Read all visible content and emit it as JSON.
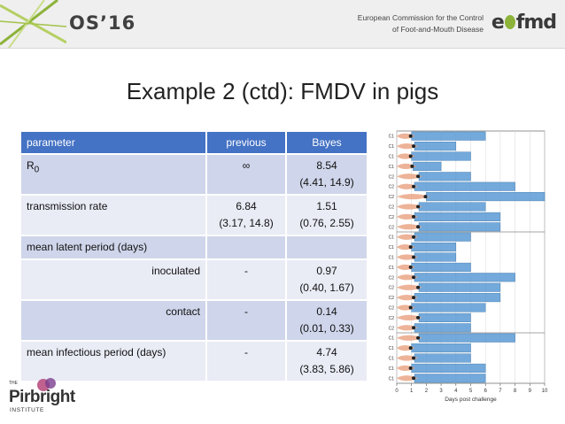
{
  "header": {
    "conference_logo": "OS’16",
    "org_line1": "European Commission for the Control",
    "org_line2": "of Foot-and-Mouth Disease",
    "org_logo": "eufmd"
  },
  "slide": {
    "title": "Example 2 (ctd): FMDV in pigs"
  },
  "table": {
    "headers": [
      "parameter",
      "previous",
      "Bayes"
    ],
    "rows": [
      {
        "parameter": "R",
        "parameter_sub": "0",
        "previous": "∞",
        "bayes": "8.54",
        "bayes_ci": "(4.41, 14.9)",
        "prev_ci": ""
      },
      {
        "parameter": "transmission rate",
        "parameter_sub": "",
        "previous": "6.84",
        "prev_ci": "(3.17, 14.8)",
        "bayes": "1.51",
        "bayes_ci": "(0.76, 2.55)"
      },
      {
        "parameter": "mean latent period (days)",
        "parameter_sub": "",
        "previous": "",
        "prev_ci": "",
        "bayes": "",
        "bayes_ci": ""
      },
      {
        "parameter": "inoculated",
        "parameter_sub": "",
        "previous": "-",
        "prev_ci": "",
        "bayes": "0.97",
        "bayes_ci": "(0.40, 1.67)"
      },
      {
        "parameter": "contact",
        "parameter_sub": "",
        "previous": "-",
        "prev_ci": "",
        "bayes": "0.14",
        "bayes_ci": "(0.01, 0.33)"
      },
      {
        "parameter": "mean infectious period (days)",
        "parameter_sub": "",
        "previous": "-",
        "prev_ci": "",
        "bayes": "4.74",
        "bayes_ci": "(3.83, 5.86)"
      }
    ]
  },
  "chart_data": {
    "type": "bar",
    "orientation": "horizontal",
    "xlabel": "Days post challenge",
    "xlim": [
      0,
      10
    ],
    "xticks": [
      "0",
      "1",
      "2",
      "3",
      "4",
      "5",
      "6",
      "7",
      "8",
      "9",
      "10"
    ],
    "groups": [
      {
        "rows": [
          {
            "label": "C1",
            "latent_end": 1.0,
            "infectious_end": 6.0
          },
          {
            "label": "C1",
            "latent_end": 1.2,
            "infectious_end": 4.0
          },
          {
            "label": "C1",
            "latent_end": 1.0,
            "infectious_end": 5.0
          },
          {
            "label": "C1",
            "latent_end": 1.1,
            "infectious_end": 3.0
          },
          {
            "label": "C2",
            "latent_end": 1.5,
            "infectious_end": 5.0
          },
          {
            "label": "C2",
            "latent_end": 1.2,
            "infectious_end": 8.0
          },
          {
            "label": "C2",
            "latent_end": 2.0,
            "infectious_end": 10.0
          },
          {
            "label": "C2",
            "latent_end": 1.5,
            "infectious_end": 6.0
          },
          {
            "label": "C2",
            "latent_end": 1.2,
            "infectious_end": 7.0
          },
          {
            "label": "C2",
            "latent_end": 1.5,
            "infectious_end": 7.0
          }
        ]
      },
      {
        "rows": [
          {
            "label": "C1",
            "latent_end": 1.2,
            "infectious_end": 5.0
          },
          {
            "label": "C1",
            "latent_end": 1.0,
            "infectious_end": 4.0
          },
          {
            "label": "C1",
            "latent_end": 1.2,
            "infectious_end": 4.0
          },
          {
            "label": "C1",
            "latent_end": 1.0,
            "infectious_end": 5.0
          },
          {
            "label": "C2",
            "latent_end": 1.2,
            "infectious_end": 8.0
          },
          {
            "label": "C2",
            "latent_end": 1.5,
            "infectious_end": 7.0
          },
          {
            "label": "C2",
            "latent_end": 1.2,
            "infectious_end": 7.0
          },
          {
            "label": "C2",
            "latent_end": 1.0,
            "infectious_end": 6.0
          },
          {
            "label": "C2",
            "latent_end": 1.5,
            "infectious_end": 5.0
          },
          {
            "label": "C2",
            "latent_end": 1.2,
            "infectious_end": 5.0
          }
        ]
      },
      {
        "rows": [
          {
            "label": "C1",
            "latent_end": 1.5,
            "infectious_end": 8.0
          },
          {
            "label": "C1",
            "latent_end": 1.0,
            "infectious_end": 5.0
          },
          {
            "label": "C1",
            "latent_end": 1.2,
            "infectious_end": 5.0
          },
          {
            "label": "C1",
            "latent_end": 1.0,
            "infectious_end": 6.0
          },
          {
            "label": "C1",
            "latent_end": 1.2,
            "infectious_end": 6.0
          }
        ]
      }
    ]
  },
  "footer": {
    "institute_prefix": "THE",
    "institute_name": "Pirbright",
    "institute_suffix": "INSTITUTE"
  },
  "colors": {
    "table_header": "#4472c4",
    "row_dark": "#cfd5ea",
    "row_light": "#e9ebf5",
    "bar_fill": "#5b9bd5",
    "violin": "#e8a07e",
    "org_accent": "#8db33a"
  }
}
